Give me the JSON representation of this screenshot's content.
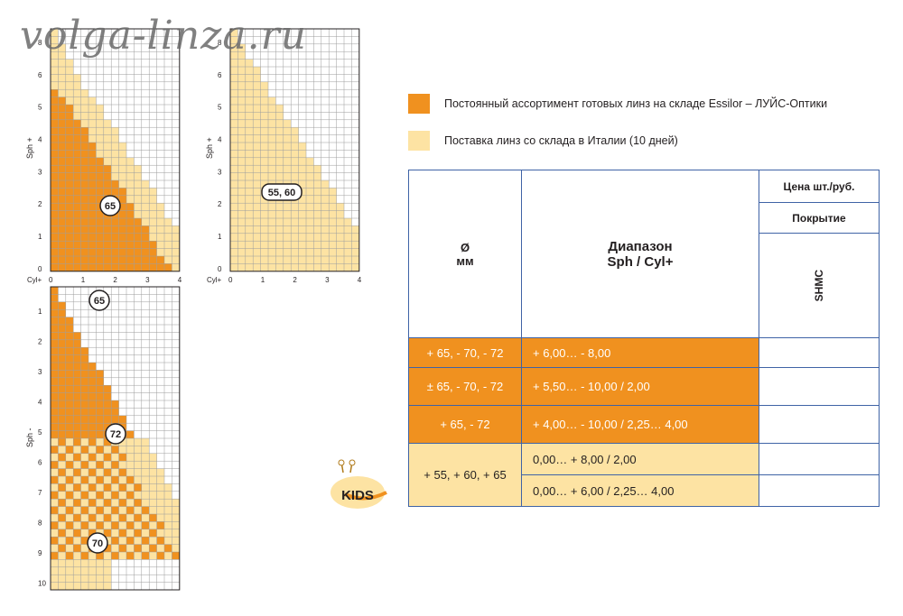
{
  "watermark": "volga-linza.ru",
  "legend": [
    {
      "label": "Постоянный ассортимент готовых линз на складе Essilor – ЛУЙС-Оптики",
      "color": "#f0911f"
    },
    {
      "label": "Поставка линз со склада в Италии (10 дней)",
      "color": "#fde3a3"
    }
  ],
  "grid_plus": {
    "sph_label": "Sph +",
    "cyl_label": "Cyl+",
    "sph_ticks": [
      "0",
      "1",
      "2",
      "3",
      "4",
      "5",
      "6",
      "8"
    ],
    "cyl_ticks": [
      "0",
      "1",
      "2",
      "3",
      "4"
    ],
    "zones_left": [
      "65"
    ],
    "zones_right": [
      "55, 60"
    ]
  },
  "grid_minus": {
    "sph_label": "Sph -",
    "sph_ticks": [
      "1",
      "2",
      "3",
      "4",
      "5",
      "6",
      "7",
      "8",
      "9",
      "10"
    ],
    "zones": [
      "65",
      "72",
      "70"
    ]
  },
  "kids_badge": "KIDS",
  "table": {
    "header": {
      "diameter_symbol": "Ø",
      "diameter_unit": "мм",
      "range_title": "Диапазон",
      "range_sub": "Sph / Cyl+",
      "price_title": "Цена шт./руб.",
      "coating_title": "Покрытие",
      "coating_name": "SHMC"
    },
    "rows": [
      {
        "diameter": "+ 65, - 70, - 72",
        "range": "+ 6,00… - 8,00",
        "price": ""
      },
      {
        "diameter": "± 65, - 70, - 72",
        "range": "+ 5,50… - 10,00 / 2,00",
        "price": ""
      },
      {
        "diameter": "+ 65, - 72",
        "range": "+ 4,00… - 10,00 / 2,25… 4,00",
        "price": ""
      },
      {
        "diameter": "+ 55, + 60, + 65",
        "range": "0,00… + 8,00 / 2,00",
        "range2": "0,00… + 6,00 / 2,25… 4,00",
        "price": "",
        "price2": ""
      }
    ]
  },
  "colors": {
    "orange": "#f0911f",
    "light": "#fde3a3",
    "border": "#3f63a6",
    "grid": "#9c9c9c"
  }
}
